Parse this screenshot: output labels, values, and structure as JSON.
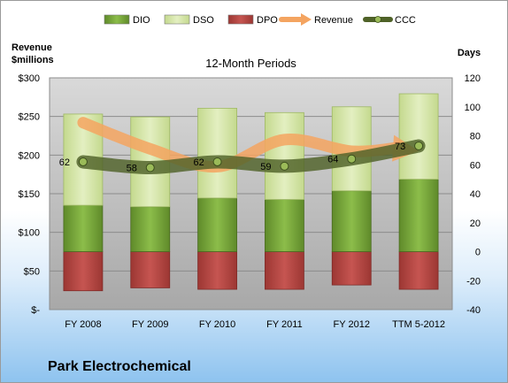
{
  "chart_data": {
    "type": "bar",
    "title": "12-Month Periods",
    "company": "Park Electrochemical",
    "categories": [
      "FY 2008",
      "FY 2009",
      "FY 2010",
      "FY 2011",
      "FY 2012",
      "TTM 5-2012"
    ],
    "left_axis": {
      "label_line1": "Revenue",
      "label_line2": "$millions",
      "ylim": [
        0,
        300
      ],
      "ticks": [
        "$-",
        "$50",
        "$100",
        "$150",
        "$200",
        "$250",
        "$300"
      ]
    },
    "right_axis": {
      "label": "Days",
      "ylim": [
        -40,
        120
      ],
      "ticks": [
        "-40",
        "-20",
        "0",
        "20",
        "40",
        "60",
        "80",
        "100",
        "120"
      ]
    },
    "legend": {
      "position": "top",
      "items": [
        {
          "name": "DIO",
          "type": "bar",
          "color": "#77a33a"
        },
        {
          "name": "DSO",
          "type": "bar",
          "color": "#d6e6a7"
        },
        {
          "name": "DPO",
          "type": "bar",
          "color": "#c0504d"
        },
        {
          "name": "Revenue",
          "type": "arrow",
          "color": "#f4a460"
        },
        {
          "name": "CCC",
          "type": "line",
          "color": "#4f6228"
        }
      ]
    },
    "series": [
      {
        "name": "DIO",
        "axis": "days",
        "values": [
          32,
          31,
          37,
          36,
          42,
          50
        ]
      },
      {
        "name": "DSO",
        "axis": "days",
        "values": [
          63,
          62,
          62,
          60,
          58,
          59
        ]
      },
      {
        "name": "DPO",
        "axis": "days",
        "values": [
          -27,
          -25,
          -26,
          -26,
          -23,
          -26
        ]
      },
      {
        "name": "Revenue",
        "axis": "revenue",
        "values": [
          242,
          208,
          185,
          220,
          205,
          210
        ]
      },
      {
        "name": "CCC",
        "axis": "days",
        "values": [
          62,
          58,
          62,
          59,
          64,
          73
        ]
      }
    ],
    "ccc_labels": [
      "62",
      "58",
      "62",
      "59",
      "64",
      "73"
    ],
    "grid": true
  }
}
